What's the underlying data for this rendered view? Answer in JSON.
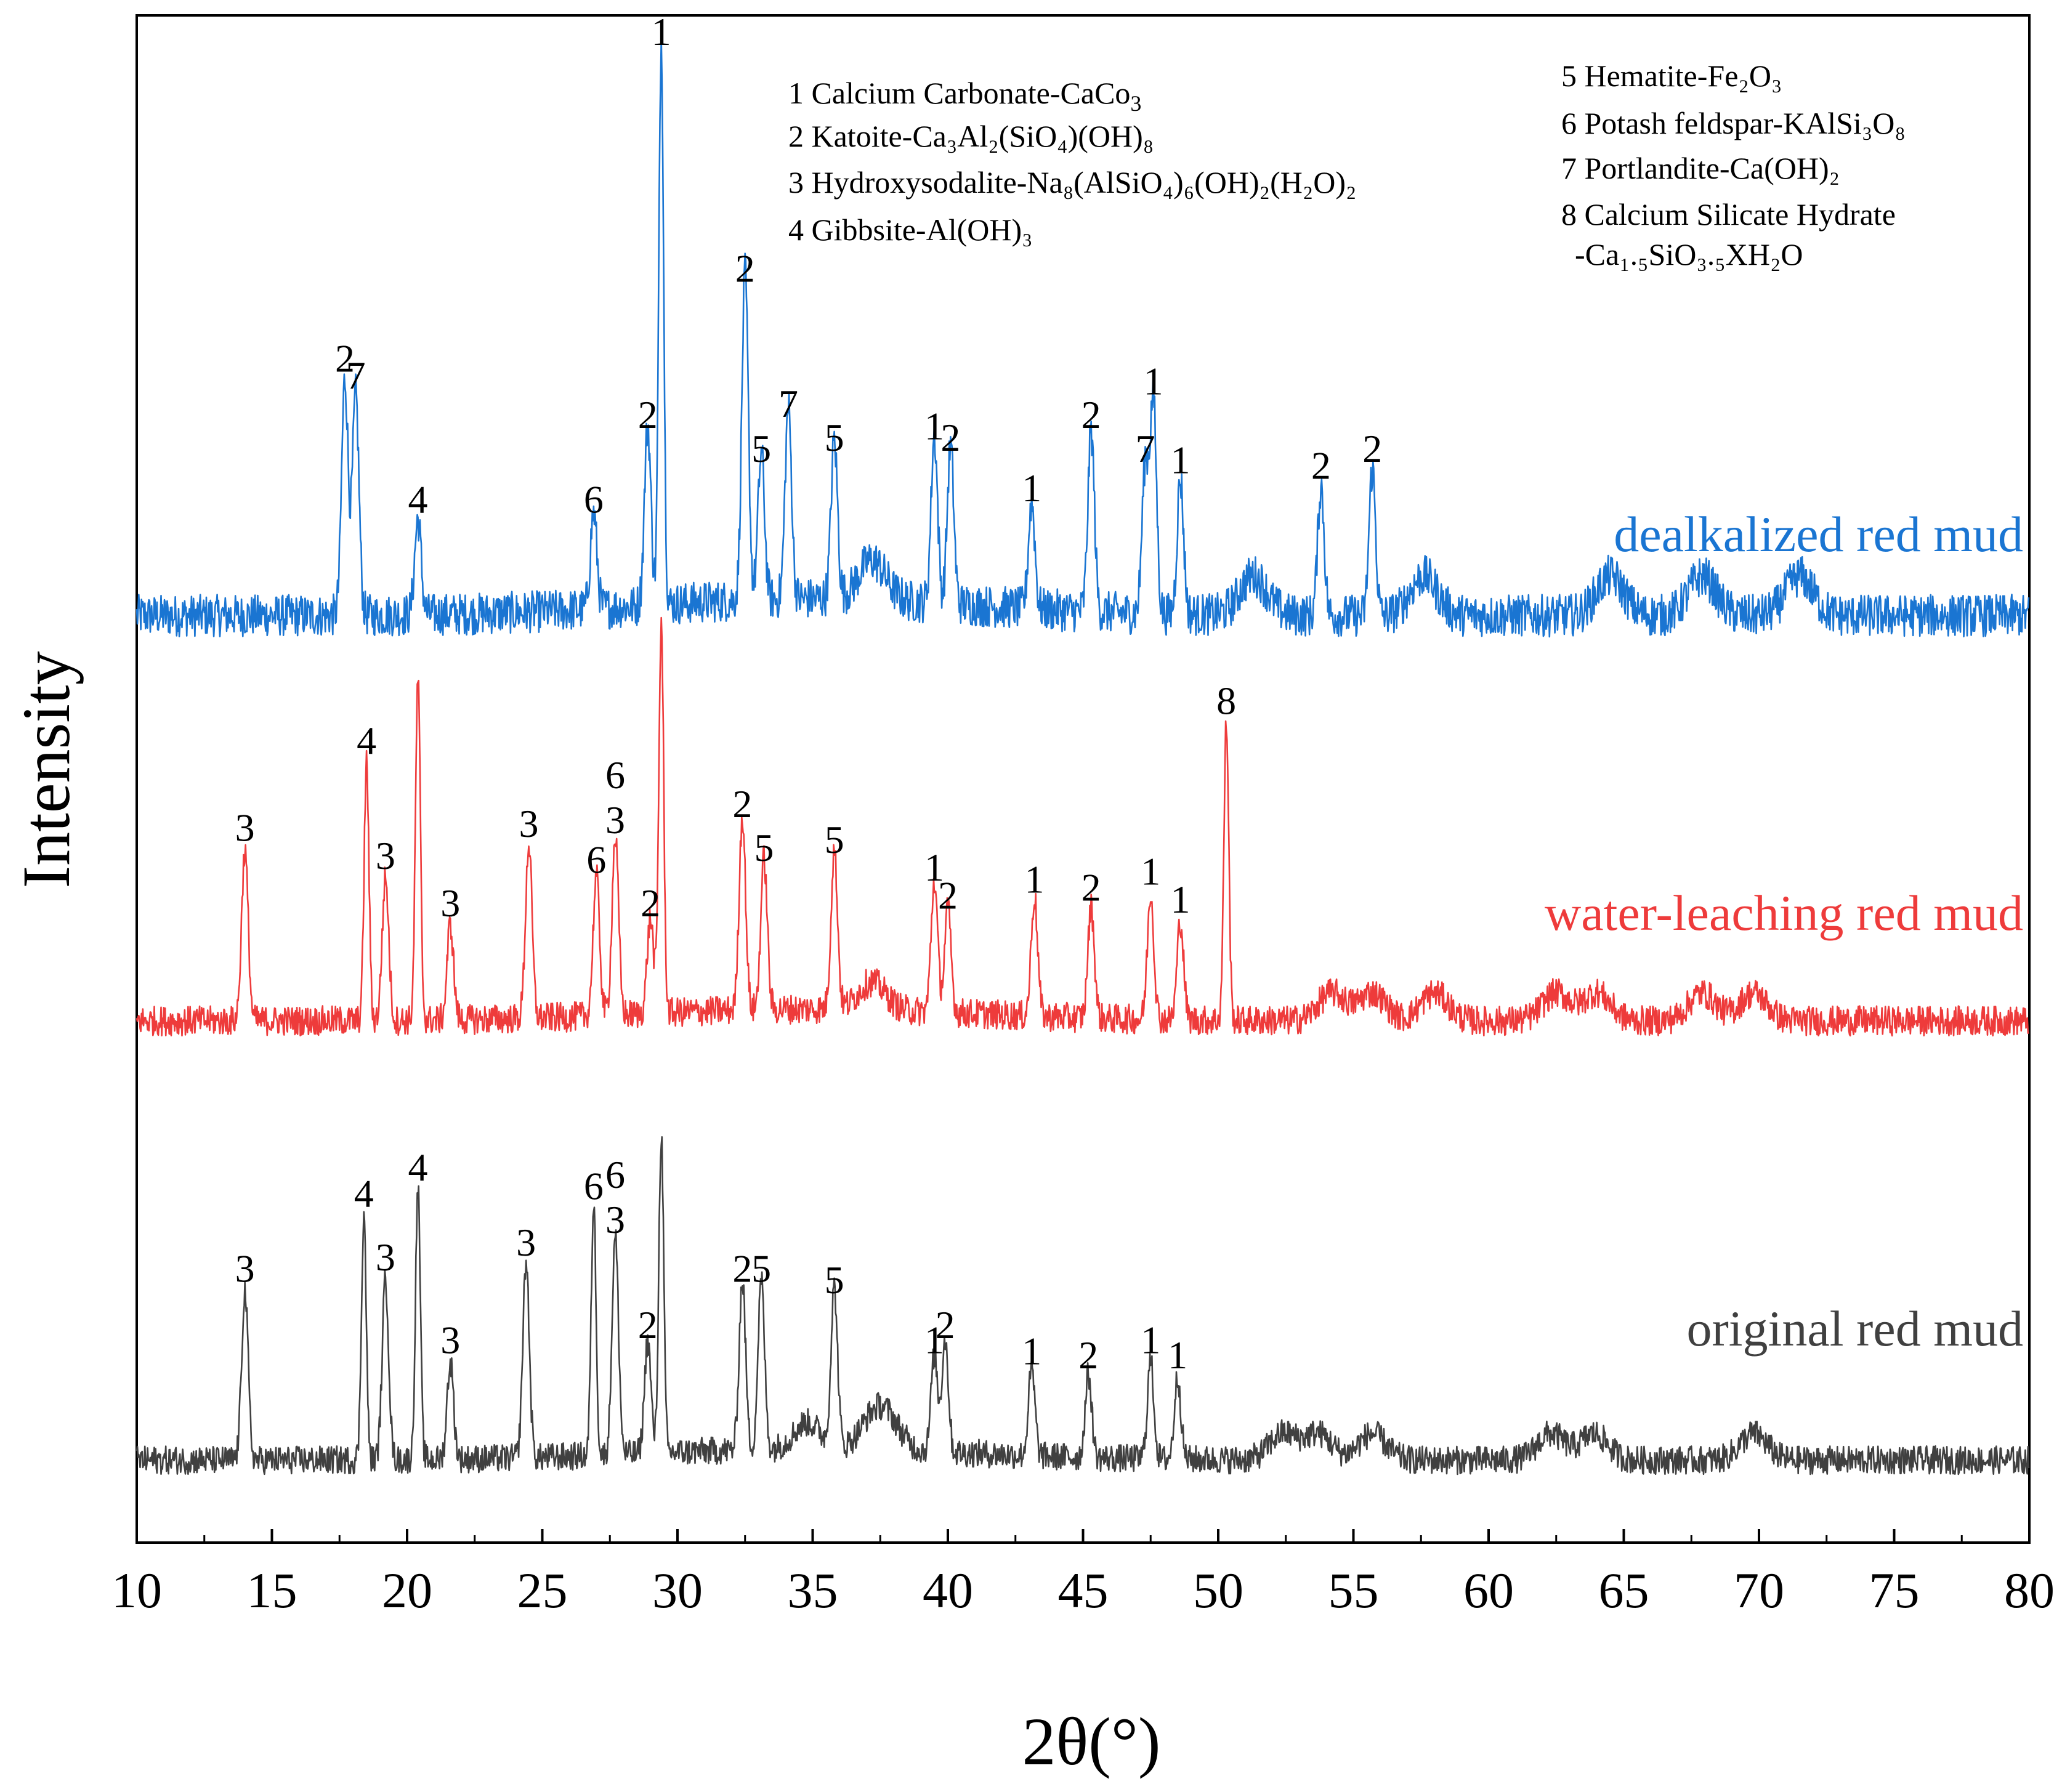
{
  "chart_data": {
    "type": "line",
    "title": "",
    "xlabel": "2θ(°)",
    "ylabel": "Intensity",
    "xlim": [
      10,
      80
    ],
    "xticks": [
      "10",
      "15",
      "20",
      "25",
      "30",
      "35",
      "40",
      "45",
      "50",
      "55",
      "60",
      "65",
      "70",
      "75",
      "80"
    ],
    "grid": false,
    "legend_position": "top-right",
    "phase_legend": {
      "left": [
        {
          "num": "1",
          "name": "Calcium Carbonate-CaCo",
          "sub": "3"
        },
        {
          "num": "2",
          "name": "Katoite-Ca₃Al₂(SiO₄)(OH)₈"
        },
        {
          "num": "3",
          "name": "Hydroxysodalite-Na₈(AlSiO₄)₆(OH)₂(H₂O)₂"
        },
        {
          "num": "4",
          "name": "Gibbsite-Al(OH)₃"
        }
      ],
      "right": [
        {
          "num": "5",
          "name": "Hematite-Fe₂O₃"
        },
        {
          "num": "6",
          "name": "Potash feldspar-KAlSi₃O₈"
        },
        {
          "num": "7",
          "name": "Portlandite-Ca(OH)₂"
        },
        {
          "num": "8",
          "name": "Calcium Silicate Hydrate"
        },
        {
          "num": "",
          "name": "-Ca₁.₅SiO₃.₅XH₂O"
        }
      ]
    },
    "series": [
      {
        "name": "dealkalized red mud",
        "color": "#1a75d2",
        "peaks": [
          {
            "x": 17.7,
            "h": 0.42,
            "label": "2"
          },
          {
            "x": 18.1,
            "h": 0.39,
            "label": "7"
          },
          {
            "x": 20.4,
            "h": 0.17,
            "label": "4"
          },
          {
            "x": 26.9,
            "h": 0.17,
            "label": "6"
          },
          {
            "x": 28.9,
            "h": 0.32,
            "label": "2"
          },
          {
            "x": 29.4,
            "h": 1.0,
            "label": "1"
          },
          {
            "x": 32.5,
            "h": 0.58,
            "label": "2"
          },
          {
            "x": 33.1,
            "h": 0.26,
            "label": "5"
          },
          {
            "x": 34.1,
            "h": 0.34,
            "label": "7"
          },
          {
            "x": 35.8,
            "h": 0.28,
            "label": "5"
          },
          {
            "x": 39.5,
            "h": 0.3,
            "label": "1"
          },
          {
            "x": 40.1,
            "h": 0.28,
            "label": "2"
          },
          {
            "x": 43.1,
            "h": 0.19,
            "label": "1"
          },
          {
            "x": 45.3,
            "h": 0.32,
            "label": "2"
          },
          {
            "x": 47.3,
            "h": 0.26,
            "label": "7"
          },
          {
            "x": 47.6,
            "h": 0.38,
            "label": "1"
          },
          {
            "x": 48.6,
            "h": 0.24,
            "label": "1"
          },
          {
            "x": 53.8,
            "h": 0.23,
            "label": "2"
          },
          {
            "x": 55.7,
            "h": 0.26,
            "label": "2"
          }
        ],
        "minor_peaks": [
          37.2,
          51.3,
          57.6,
          64.5,
          67.9,
          71.5
        ]
      },
      {
        "name": "water-leaching red mud",
        "color": "#ee3b3b",
        "peaks": [
          {
            "x": 14.0,
            "h": 0.43,
            "label": "3"
          },
          {
            "x": 18.5,
            "h": 0.65,
            "label": "4"
          },
          {
            "x": 19.2,
            "h": 0.36,
            "label": "3"
          },
          {
            "x": 20.4,
            "h": 0.86,
            "label": ""
          },
          {
            "x": 21.6,
            "h": 0.24,
            "label": "3"
          },
          {
            "x": 24.5,
            "h": 0.44,
            "label": "3"
          },
          {
            "x": 27.0,
            "h": 0.35,
            "label": "6"
          },
          {
            "x": 27.7,
            "h": 0.45,
            "label": "3"
          },
          {
            "x": 29.0,
            "h": 0.24,
            "label": "2"
          },
          {
            "x": 29.4,
            "h": 0.98,
            "label": ""
          },
          {
            "x": 32.4,
            "h": 0.49,
            "label": "2"
          },
          {
            "x": 33.2,
            "h": 0.38,
            "label": "5"
          },
          {
            "x": 35.8,
            "h": 0.4,
            "label": "5"
          },
          {
            "x": 39.5,
            "h": 0.33,
            "label": "1"
          },
          {
            "x": 40.0,
            "h": 0.26,
            "label": "2"
          },
          {
            "x": 43.2,
            "h": 0.3,
            "label": "1"
          },
          {
            "x": 45.3,
            "h": 0.28,
            "label": "2"
          },
          {
            "x": 47.5,
            "h": 0.32,
            "label": "1"
          },
          {
            "x": 48.6,
            "h": 0.25,
            "label": "1"
          },
          {
            "x": 50.3,
            "h": 0.75,
            "label": "8"
          }
        ],
        "extra_labels": [
          {
            "x": 27.7,
            "label": "6"
          }
        ],
        "minor_peaks": [
          37.2,
          54.2,
          55.7,
          58.0,
          62.5,
          64.0,
          67.9,
          69.8
        ]
      },
      {
        "name": "original red mud",
        "color": "#404040",
        "peaks": [
          {
            "x": 14.0,
            "h": 0.45,
            "label": "3"
          },
          {
            "x": 18.4,
            "h": 0.65,
            "label": "4"
          },
          {
            "x": 19.2,
            "h": 0.48,
            "label": "3"
          },
          {
            "x": 20.4,
            "h": 0.72,
            "label": "4"
          },
          {
            "x": 21.6,
            "h": 0.26,
            "label": "3"
          },
          {
            "x": 24.4,
            "h": 0.52,
            "label": "3"
          },
          {
            "x": 26.9,
            "h": 0.67,
            "label": "6"
          },
          {
            "x": 27.7,
            "h": 0.58,
            "label": "3"
          },
          {
            "x": 28.9,
            "h": 0.3,
            "label": "2"
          },
          {
            "x": 29.4,
            "h": 0.85,
            "label": ""
          },
          {
            "x": 32.4,
            "h": 0.45,
            "label": "2"
          },
          {
            "x": 33.1,
            "h": 0.45,
            "label": "5"
          },
          {
            "x": 35.8,
            "h": 0.42,
            "label": "5"
          },
          {
            "x": 39.5,
            "h": 0.26,
            "label": "1"
          },
          {
            "x": 39.9,
            "h": 0.3,
            "label": "2"
          },
          {
            "x": 43.1,
            "h": 0.23,
            "label": "1"
          },
          {
            "x": 45.2,
            "h": 0.22,
            "label": "2"
          },
          {
            "x": 47.5,
            "h": 0.26,
            "label": "1"
          },
          {
            "x": 48.5,
            "h": 0.22,
            "label": "1"
          }
        ],
        "extra_labels": [
          {
            "x": 27.7,
            "label": "6"
          }
        ],
        "minor_peaks": [
          34.8,
          37.2,
          37.8,
          52.4,
          53.7,
          55.7,
          62.3,
          63.9,
          69.8
        ]
      }
    ]
  }
}
